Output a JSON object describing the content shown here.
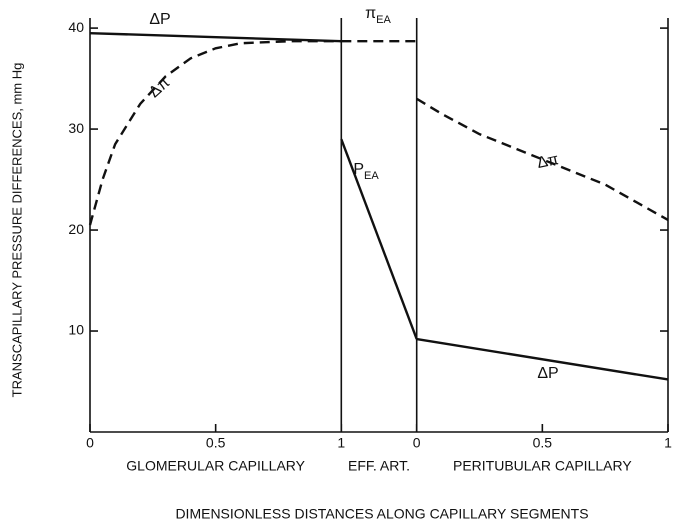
{
  "chart_data": {
    "type": "line",
    "xlabel": "DIMENSIONLESS DISTANCES ALONG CAPILLARY SEGMENTS",
    "ylabel": "TRANSCAPILLARY PRESSURE DIFFERENCES, mm Hg",
    "xlim": [
      0,
      2.3
    ],
    "ylim": [
      0,
      41
    ],
    "xticks": [
      0,
      0.5,
      1,
      {
        "value": 1.3,
        "label": "0"
      },
      {
        "value": 1.8,
        "label": "0.5"
      },
      {
        "value": 2.3,
        "label": "1"
      }
    ],
    "yticks": [
      10,
      20,
      30,
      40
    ],
    "segments": [
      "GLOMERULAR CAPILLARY",
      "EFF. ART.",
      "PERITUBULAR CAPILLARY"
    ],
    "series": [
      {
        "name": "ΔP",
        "color": "#111111",
        "dashed": false,
        "x": [
          0,
          1
        ],
        "values": [
          39.5,
          38.7
        ]
      },
      {
        "name": "Δπ",
        "color": "#111111",
        "dashed": true,
        "x": [
          0,
          0.05,
          0.1,
          0.2,
          0.3,
          0.4,
          0.5,
          0.6,
          0.7,
          0.8,
          1
        ],
        "values": [
          20.5,
          25,
          28.5,
          32.5,
          35.2,
          37,
          38,
          38.5,
          38.6,
          38.7,
          38.7
        ]
      },
      {
        "name": "π",
        "subscript": "EA",
        "color": "#111111",
        "dashed": true,
        "x": [
          1,
          1.3
        ],
        "values": [
          38.7,
          38.7
        ]
      },
      {
        "name": "P",
        "subscript": "EA",
        "color": "#111111",
        "dashed": false,
        "x": [
          1,
          1.3
        ],
        "values": [
          29,
          9.2
        ]
      },
      {
        "name": "Δπ",
        "color": "#111111",
        "dashed": true,
        "x": [
          1.3,
          1.4,
          1.55,
          1.8,
          2.05,
          2.3
        ],
        "values": [
          33,
          31.5,
          29.5,
          27,
          24.5,
          21
        ]
      },
      {
        "name": "ΔP",
        "color": "#111111",
        "dashed": false,
        "x": [
          1.3,
          2.3
        ],
        "values": [
          9.2,
          5.2
        ]
      }
    ]
  }
}
